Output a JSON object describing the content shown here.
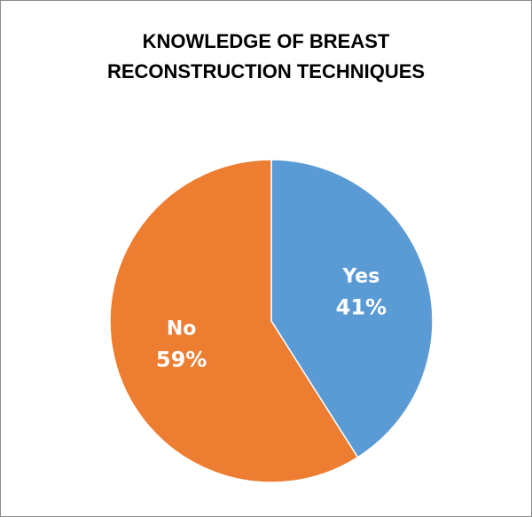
{
  "chart_data": {
    "type": "pie",
    "title_lines": [
      "KNOWLEDGE OF BREAST",
      "RECONSTRUCTION TECHNIQUES"
    ],
    "slices": [
      {
        "label": "Yes",
        "value": 41,
        "value_label": "41%",
        "color": "#5b9bd5"
      },
      {
        "label": "No",
        "value": 59,
        "value_label": "59%",
        "color": "#ed7d31"
      }
    ],
    "start": "12 o'clock",
    "direction": "clockwise",
    "legend": "none"
  }
}
